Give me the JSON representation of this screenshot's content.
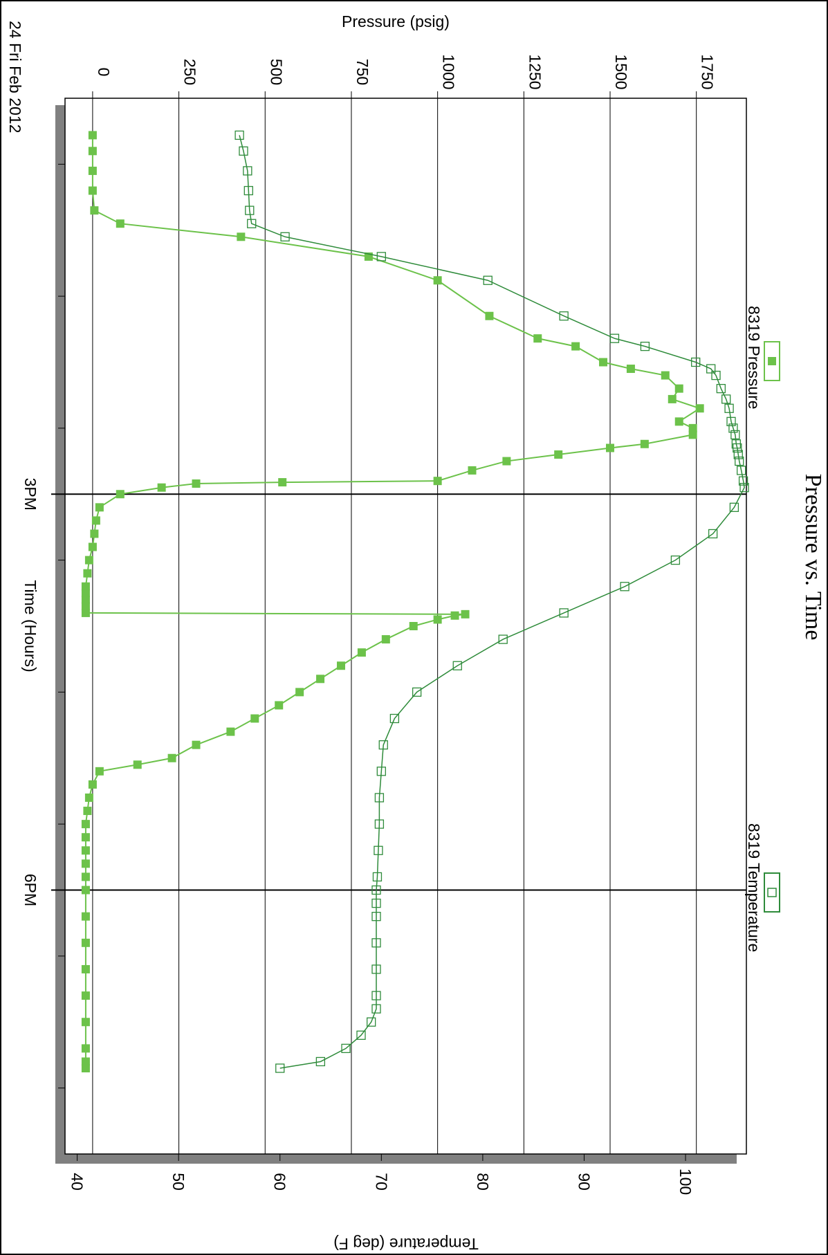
{
  "chart_data": {
    "type": "line",
    "title": "Pressure vs. Time",
    "date_label": "24 Fri Feb 2012",
    "xlabel": "Time (Hours)",
    "ylabel_left": "Pressure (psig)",
    "ylabel_right": "Temperature (deg F)",
    "x_unit": "hours",
    "xlim": [
      12.0,
      20.0
    ],
    "x_ticks": [
      {
        "value": 15,
        "label": "3PM"
      },
      {
        "value": 18,
        "label": "6PM"
      }
    ],
    "x_minor_ticks": [
      12.5,
      13.5,
      14.5,
      15.5,
      16.5,
      17.5,
      18.5,
      19.5
    ],
    "ylim_pressure": [
      -80,
      1895
    ],
    "pressure_ticks": [
      0,
      250,
      500,
      750,
      1000,
      1250,
      1500,
      1750
    ],
    "ylim_temperature": [
      38.8,
      106.0
    ],
    "temperature_ticks": [
      40,
      50,
      60,
      70,
      80,
      90,
      100
    ],
    "grid": true,
    "legend_placement": "top",
    "colors": {
      "pressure": "#6cc24a",
      "temperature": "#2e8b3a",
      "frame_shadow": "#808080"
    },
    "series": [
      {
        "name": "8319 Pressure",
        "axis": "pressure",
        "marker": "filled-square",
        "x": [
          12.28,
          12.4,
          12.55,
          12.7,
          12.85,
          12.95,
          13.05,
          13.2,
          13.38,
          13.65,
          13.82,
          13.88,
          14.0,
          14.05,
          14.1,
          14.2,
          14.28,
          14.35,
          14.45,
          14.5,
          14.55,
          14.62,
          14.65,
          14.7,
          14.75,
          14.82,
          14.9,
          14.91,
          14.92,
          14.95,
          15.0,
          15.1,
          15.2,
          15.3,
          15.4,
          15.5,
          15.6,
          15.7,
          15.75,
          15.8,
          15.85,
          15.9,
          15.91,
          15.92,
          15.95,
          16.0,
          16.1,
          16.2,
          16.3,
          16.4,
          16.5,
          16.6,
          16.7,
          16.8,
          16.9,
          17.0,
          17.05,
          17.1,
          17.2,
          17.3,
          17.4,
          17.5,
          17.6,
          17.7,
          17.8,
          17.9,
          18.0,
          18.2,
          18.4,
          18.6,
          18.8,
          19.0,
          19.2,
          19.3,
          19.35
        ],
        "values": [
          0,
          0,
          0,
          0,
          5,
          80,
          430,
          800,
          1000,
          1150,
          1290,
          1400,
          1480,
          1560,
          1660,
          1700,
          1680,
          1760,
          1700,
          1740,
          1740,
          1600,
          1500,
          1350,
          1200,
          1100,
          1000,
          550,
          300,
          200,
          80,
          20,
          10,
          5,
          0,
          -10,
          -15,
          -20,
          -20,
          -20,
          -20,
          -20,
          1080,
          1050,
          1000,
          930,
          850,
          780,
          720,
          660,
          600,
          540,
          470,
          400,
          300,
          230,
          130,
          20,
          0,
          -10,
          -15,
          -20,
          -20,
          -20,
          -20,
          -20,
          -20,
          -20,
          -20,
          -20,
          -20,
          -20,
          -20,
          -20,
          -20
        ]
      },
      {
        "name": "8319 Temperature",
        "axis": "temperature",
        "marker": "open-square",
        "x": [
          12.28,
          12.4,
          12.55,
          12.7,
          12.85,
          12.95,
          13.05,
          13.2,
          13.38,
          13.65,
          13.82,
          13.88,
          14.0,
          14.05,
          14.1,
          14.2,
          14.28,
          14.35,
          14.45,
          14.5,
          14.55,
          14.62,
          14.65,
          14.7,
          14.75,
          14.82,
          14.9,
          14.95,
          15.1,
          15.3,
          15.5,
          15.7,
          15.9,
          16.1,
          16.3,
          16.5,
          16.7,
          16.9,
          17.1,
          17.3,
          17.5,
          17.7,
          17.9,
          18.0,
          18.1,
          18.2,
          18.4,
          18.6,
          18.8,
          18.9,
          19.0,
          19.1,
          19.2,
          19.3,
          19.35
        ],
        "values": [
          56,
          56.4,
          56.8,
          56.9,
          57.0,
          57.2,
          60.5,
          70.0,
          80.5,
          88.0,
          93.0,
          96.0,
          101.0,
          102.5,
          103.0,
          103.5,
          104.0,
          104.3,
          104.5,
          104.7,
          104.9,
          105.0,
          105.1,
          105.2,
          105.3,
          105.5,
          105.7,
          105.8,
          104.8,
          102.7,
          99.0,
          94.0,
          88.0,
          82.0,
          77.5,
          73.5,
          71.3,
          70.2,
          70.0,
          69.8,
          69.8,
          69.7,
          69.6,
          69.5,
          69.5,
          69.5,
          69.5,
          69.5,
          69.5,
          69.5,
          69.0,
          68.0,
          66.5,
          64.0,
          60.0
        ]
      }
    ]
  }
}
